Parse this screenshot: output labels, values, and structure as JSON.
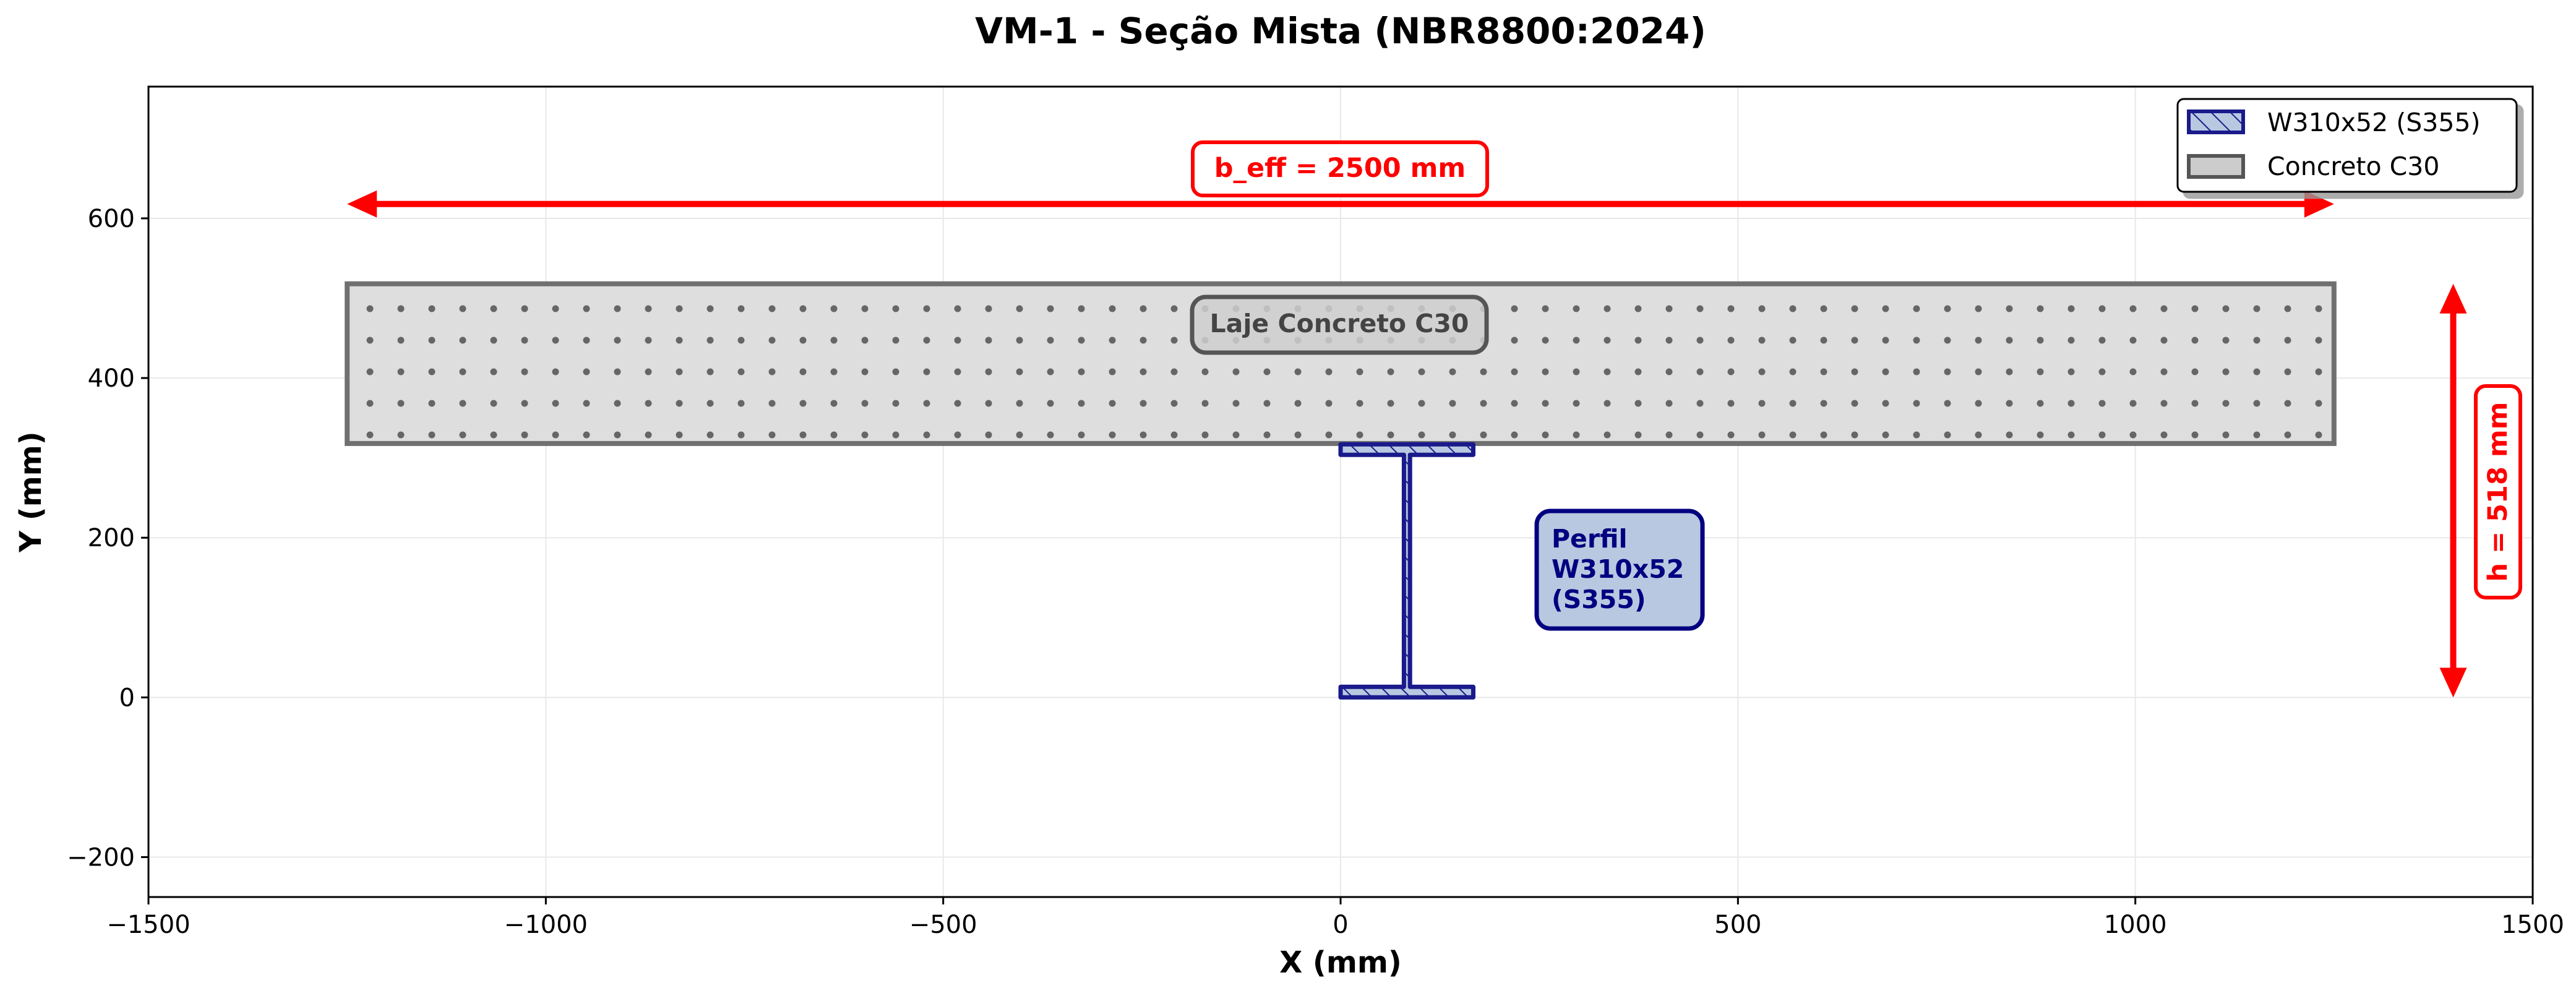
{
  "chart_data": {
    "type": "diagram",
    "title": "VM-1 - Seção Mista (NBR8800:2024)",
    "xlabel": "X (mm)",
    "ylabel": "Y (mm)",
    "xlim": [
      -1500,
      1500
    ],
    "ylim": [
      -250,
      765
    ],
    "x_ticks": [
      -1500,
      -1000,
      -500,
      0,
      500,
      1000,
      1500
    ],
    "x_tick_labels": [
      "−1500",
      "−1000",
      "−500",
      "0",
      "500",
      "1000",
      "1500"
    ],
    "y_ticks": [
      -200,
      0,
      200,
      400,
      600
    ],
    "y_tick_labels": [
      "−200",
      "0",
      "200",
      "400",
      "600"
    ],
    "grid": true,
    "legend": {
      "placement": "top-right",
      "entries": [
        {
          "label": "W310x52 (S355)",
          "fill": "#b8c8e0",
          "edge": "#1a1a8c"
        },
        {
          "label": "Concreto C30",
          "fill": "#cccccc",
          "edge": "#555555"
        }
      ]
    },
    "steel_section": {
      "name": "W310x52",
      "d": 317,
      "bf": 167,
      "tf": 13.2,
      "tw": 7.6,
      "x0": 0,
      "y0": 0,
      "fill": "#b8c8e0",
      "edge": "#1a1a8c"
    },
    "concrete_slab": {
      "name": "Concreto C30",
      "x_min": -1250,
      "x_max": 1250,
      "y_bottom": 318,
      "y_top": 518,
      "fill": "#dedede",
      "edge": "#707070"
    },
    "annotations": {
      "beff": {
        "text": "b_eff = 2500 mm",
        "x1": -1250,
        "x2": 1250,
        "y": 618,
        "label_x": 0,
        "label_y": 668
      },
      "height": {
        "text": "h = 518 mm",
        "x": 1400,
        "y1": 0,
        "y2": 518,
        "label_x": 1450,
        "label_y": 259
      },
      "slab_label": {
        "text": "Laje Concreto C30",
        "x": 0,
        "y": 468
      },
      "profile_label": {
        "lines": [
          "Perfil",
          "W310x52",
          "(S355)"
        ],
        "x": 265,
        "y": 158
      }
    },
    "colors": {
      "annotation_red": "#ff0000",
      "steel_dark": "#000080",
      "concrete_dot": "#666666"
    }
  }
}
